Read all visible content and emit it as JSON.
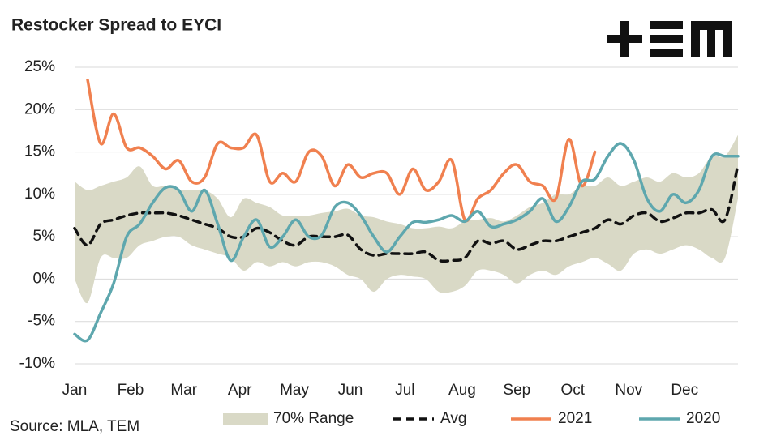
{
  "chart_data": {
    "type": "line",
    "title": "Restocker Spread to EYCI",
    "source": "Source: MLA, TEM",
    "x": [
      1,
      2,
      3,
      4,
      5,
      6,
      7,
      8,
      9,
      10,
      11,
      12,
      13,
      14,
      15,
      16,
      17,
      18,
      19,
      20,
      21,
      22,
      23,
      24,
      25,
      26,
      27,
      28,
      29,
      30,
      31,
      32,
      33,
      34,
      35,
      36,
      37,
      38,
      39,
      40,
      41,
      42,
      43,
      44,
      45,
      46,
      47,
      48,
      49,
      50,
      51,
      52
    ],
    "xlim": [
      1,
      52
    ],
    "xticks": [
      {
        "value": 1,
        "label": "Jan"
      },
      {
        "value": 5.3,
        "label": "Feb"
      },
      {
        "value": 9.4,
        "label": "Mar"
      },
      {
        "value": 13.7,
        "label": "Apr"
      },
      {
        "value": 17.9,
        "label": "May"
      },
      {
        "value": 22.2,
        "label": "Jun"
      },
      {
        "value": 26.4,
        "label": "Jul"
      },
      {
        "value": 30.8,
        "label": "Aug"
      },
      {
        "value": 35.0,
        "label": "Sep"
      },
      {
        "value": 39.3,
        "label": "Oct"
      },
      {
        "value": 43.6,
        "label": "Nov"
      },
      {
        "value": 47.9,
        "label": "Dec"
      }
    ],
    "ylim": [
      -10,
      25
    ],
    "yticks": [
      {
        "value": -10,
        "label": "-10%"
      },
      {
        "value": -5,
        "label": "-5%"
      },
      {
        "value": 0,
        "label": "0%"
      },
      {
        "value": 5,
        "label": "5%"
      },
      {
        "value": 10,
        "label": "10%"
      },
      {
        "value": 15,
        "label": "15%"
      },
      {
        "value": 20,
        "label": "20%"
      },
      {
        "value": 25,
        "label": "25%"
      }
    ],
    "grid": true,
    "band": {
      "name": "70% Range",
      "color": "#d9d9c6",
      "upper": [
        11.5,
        10.5,
        11,
        11.5,
        12,
        13.3,
        11,
        11,
        10.5,
        10.5,
        10.5,
        9.5,
        7.3,
        9.5,
        9,
        8.5,
        7.5,
        7.5,
        7.5,
        7.8,
        8,
        8.3,
        7.5,
        7.3,
        6.8,
        6.5,
        6,
        6,
        6.2,
        6,
        6.8,
        7,
        7.2,
        6.8,
        7.5,
        8.5,
        9,
        10,
        10,
        11,
        11,
        12,
        11,
        11.5,
        12,
        11.5,
        12.5,
        12,
        12.5,
        14.5,
        14.5,
        17
      ],
      "lower": [
        0,
        -2.8,
        2.5,
        2.5,
        2.5,
        4,
        4.5,
        5,
        5,
        4,
        3.5,
        3,
        2.5,
        1,
        2,
        1.5,
        2,
        1.5,
        2,
        2,
        1.5,
        0.5,
        0,
        -1.5,
        0,
        0.5,
        0.3,
        0,
        -1.5,
        -1.5,
        -0.8,
        1,
        1,
        0.5,
        -0.5,
        0.5,
        1,
        0.5,
        1.5,
        2,
        2.5,
        1.8,
        1,
        3,
        3.5,
        3,
        3.5,
        4,
        3.5,
        2.5,
        2.5,
        9.5
      ]
    },
    "series": [
      {
        "name": "Avg",
        "color": "#111111",
        "dashed": true,
        "values": [
          6,
          4,
          6.5,
          7,
          7.5,
          7.8,
          7.8,
          7.8,
          7.5,
          7,
          6.5,
          6,
          5,
          5,
          6,
          5.5,
          4.5,
          4,
          5,
          5,
          5,
          5.2,
          3.5,
          2.8,
          3,
          3,
          3,
          3.2,
          2.2,
          2.2,
          2.5,
          4.5,
          4.2,
          4.5,
          3.5,
          4,
          4.5,
          4.5,
          5,
          5.5,
          6,
          7,
          6.5,
          7.5,
          7.8,
          6.8,
          7.2,
          7.8,
          7.8,
          8.2,
          7,
          13.5
        ]
      },
      {
        "name": "2021",
        "color": "#f0804f",
        "dashed": false,
        "values": [
          null,
          23.5,
          16,
          19.5,
          15.5,
          15.5,
          14.5,
          13,
          14,
          11.5,
          12,
          16,
          15.5,
          15.5,
          17,
          11.5,
          12.5,
          11.5,
          15,
          14.5,
          11,
          13.5,
          12,
          12.5,
          12.5,
          10,
          13,
          10.5,
          11.5,
          14,
          7,
          9.5,
          10.5,
          12.5,
          13.5,
          11.5,
          11,
          9.5,
          16.5,
          11,
          15,
          null,
          null,
          null,
          null,
          null,
          null,
          null,
          null,
          null,
          null,
          null
        ]
      },
      {
        "name": "2020",
        "color": "#5ea7ae",
        "dashed": false,
        "values": [
          -6.5,
          -7.2,
          -4,
          -0.5,
          5,
          6.5,
          9,
          10.8,
          10.5,
          8,
          10.5,
          6.5,
          2.2,
          5,
          7,
          3.8,
          5,
          7,
          5,
          5.2,
          8.5,
          9,
          7.5,
          5,
          3.2,
          5,
          6.7,
          6.7,
          7,
          7.5,
          6.8,
          8,
          6.2,
          6.5,
          7,
          8,
          9.5,
          6.8,
          8.5,
          11.5,
          11.8,
          14.5,
          16,
          14,
          9.5,
          8,
          10,
          9,
          10.5,
          14.5,
          14.5,
          14.5
        ]
      }
    ]
  }
}
